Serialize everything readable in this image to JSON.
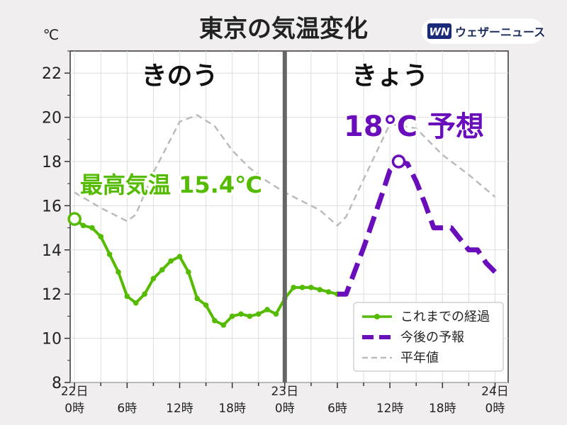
{
  "header": {
    "title": "東京の気温変化",
    "brand": "ウェザーニュース",
    "brand_mark": "WN"
  },
  "chart_data": {
    "type": "line",
    "title": "東京の気温変化",
    "y_unit": "℃",
    "ylim": [
      8,
      23
    ],
    "yticks": [
      8,
      10,
      12,
      14,
      16,
      18,
      20,
      22
    ],
    "xlim": [
      -0.5,
      49.5
    ],
    "xticks": [
      {
        "x": 0,
        "line1": "22日",
        "line2": "0時"
      },
      {
        "x": 6,
        "line1": "",
        "line2": "6時"
      },
      {
        "x": 12,
        "line1": "",
        "line2": "12時"
      },
      {
        "x": 18,
        "line1": "",
        "line2": "18時"
      },
      {
        "x": 24,
        "line1": "23日",
        "line2": "0時"
      },
      {
        "x": 30,
        "line1": "",
        "line2": "6時"
      },
      {
        "x": 36,
        "line1": "",
        "line2": "12時"
      },
      {
        "x": 42,
        "line1": "",
        "line2": "18時"
      },
      {
        "x": 48,
        "line1": "24日",
        "line2": "0時"
      }
    ],
    "grid": true,
    "divider_x": 24,
    "day_labels": [
      {
        "x": 12,
        "text": "きのう"
      },
      {
        "x": 36,
        "text": "きょう"
      }
    ],
    "legend": {
      "placement": "bottom-right",
      "entries": [
        "これまでの経過",
        "今後の予報",
        "平年値"
      ]
    },
    "series": [
      {
        "name": "これまでの経過",
        "style": "solid-markers",
        "color": "#55bb00",
        "x": [
          0,
          1,
          2,
          3,
          4,
          5,
          6,
          7,
          8,
          9,
          10,
          11,
          12,
          13,
          14,
          15,
          16,
          17,
          18,
          19,
          20,
          21,
          22,
          23,
          24,
          25,
          26,
          27,
          28,
          29,
          30
        ],
        "y": [
          15.4,
          15.1,
          15.0,
          14.6,
          13.8,
          13.0,
          11.9,
          11.6,
          12.0,
          12.7,
          13.1,
          13.5,
          13.7,
          13.0,
          11.8,
          11.5,
          10.8,
          10.6,
          11.0,
          11.1,
          11.0,
          11.1,
          11.3,
          11.1,
          11.8,
          12.3,
          12.3,
          12.3,
          12.2,
          12.1,
          12.0
        ]
      },
      {
        "name": "今後の予報",
        "style": "dashed-thick",
        "color": "#6a0dba",
        "x": [
          30,
          31,
          33,
          35,
          36,
          37,
          38,
          39,
          40,
          41,
          42,
          43,
          44,
          45,
          46,
          47,
          48
        ],
        "y": [
          12.0,
          12.0,
          14.1,
          16.4,
          17.6,
          18.0,
          17.9,
          17.1,
          16.1,
          15.0,
          15.0,
          15.0,
          14.5,
          14.0,
          14.0,
          13.4,
          13.0
        ]
      },
      {
        "name": "平年値",
        "style": "dashed-thin",
        "color": "#bbbbbb",
        "x": [
          0,
          3,
          6,
          7,
          9,
          12,
          14,
          16,
          18,
          20,
          22,
          24,
          26,
          28,
          30,
          31,
          33,
          36,
          39,
          42,
          45,
          48
        ],
        "y": [
          16.6,
          15.9,
          15.3,
          15.6,
          17.5,
          19.8,
          20.1,
          19.6,
          18.5,
          17.7,
          17.1,
          16.6,
          16.2,
          15.8,
          15.1,
          15.5,
          17.2,
          19.7,
          19.5,
          18.3,
          17.4,
          16.4
        ]
      }
    ],
    "annotations": [
      {
        "text": "最高気温 15.4℃",
        "color": "#55bb00",
        "point": {
          "x": 0,
          "y": 15.4
        }
      },
      {
        "text": "18℃ 予想",
        "color": "#6a0dba",
        "point": {
          "x": 37,
          "y": 18.0
        }
      }
    ]
  }
}
